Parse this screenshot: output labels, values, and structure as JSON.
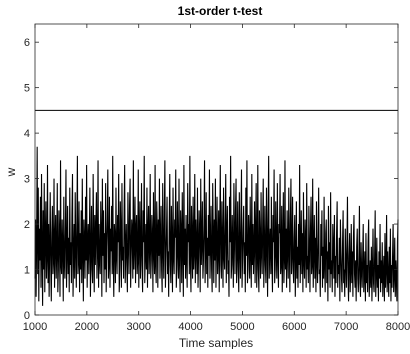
{
  "chart_data": {
    "type": "line",
    "title": "1st-order t-test",
    "xlabel": "Time samples",
    "ylabel": "w",
    "xlim": [
      1000,
      8000
    ],
    "ylim": [
      0,
      6.4
    ],
    "xticks": [
      1000,
      2000,
      3000,
      4000,
      5000,
      6000,
      7000,
      8000
    ],
    "yticks": [
      0,
      1,
      2,
      3,
      4,
      5,
      6
    ],
    "grid": false,
    "legend": "none",
    "colors": {
      "trace": "#000000",
      "threshold": "#000000",
      "axes": "#262626"
    },
    "threshold": {
      "y": 4.5
    },
    "series": [
      {
        "description": "absolute t-statistic per time sample, dense noisy trace mostly between 0 and 3.5",
        "x_start": 1000,
        "x_end": 8000,
        "step": 10,
        "values": [
          0.8,
          2.1,
          0.4,
          1.6,
          3.7,
          0.9,
          2.8,
          0.3,
          1.9,
          1.2,
          2.6,
          0.6,
          3.1,
          1.4,
          0.2,
          2.3,
          1.0,
          2.9,
          0.5,
          1.7,
          2.5,
          0.8,
          1.3,
          3.3,
          0.7,
          2.0,
          0.4,
          1.5,
          2.7,
          1.1,
          0.3,
          1.8,
          2.4,
          0.9,
          1.2,
          3.0,
          0.6,
          1.6,
          2.2,
          0.8,
          1.4,
          2.9,
          0.5,
          1.0,
          2.3,
          1.7,
          0.4,
          3.4,
          1.1,
          0.9,
          2.1,
          1.5,
          0.3,
          2.6,
          1.2,
          0.8,
          1.9,
          3.2,
          0.6,
          1.4,
          2.4,
          0.9,
          1.7,
          0.5,
          2.8,
          1.1,
          1.6,
          0.7,
          2.2,
          3.1,
          0.4,
          1.3,
          2.0,
          0.8,
          2.7,
          1.5,
          0.6,
          1.9,
          3.5,
          0.9,
          1.2,
          2.5,
          0.5,
          1.8,
          1.0,
          2.3,
          0.7,
          3.0,
          1.4,
          0.3,
          2.1,
          1.6,
          0.8,
          2.6,
          1.2,
          3.3,
          0.6,
          1.5,
          2.0,
          0.9,
          1.7,
          2.8,
          0.4,
          1.3,
          2.4,
          1.0,
          0.7,
          3.1,
          1.6,
          0.5,
          2.2,
          1.1,
          1.9,
          2.7,
          0.8,
          1.4,
          3.4,
          0.6,
          2.0,
          1.2,
          0.9,
          2.5,
          1.7,
          0.4,
          3.0,
          1.3,
          2.3,
          0.7,
          1.8,
          1.0,
          2.9,
          0.5,
          1.5,
          2.1,
          3.2,
          0.8,
          1.1,
          2.6,
          0.6,
          1.9,
          1.4,
          2.4,
          0.9,
          3.5,
          1.2,
          0.4,
          2.0,
          1.7,
          0.7,
          2.8,
          1.3,
          0.9,
          2.2,
          1.6,
          3.1,
          0.5,
          1.0,
          2.5,
          1.8,
          0.6,
          2.9,
          1.2,
          1.5,
          0.8,
          2.3,
          3.3,
          0.7,
          1.4,
          2.0,
          1.1,
          0.5,
          2.7,
          1.6,
          0.9,
          2.4,
          3.0,
          0.6,
          1.3,
          2.1,
          1.8,
          0.8,
          3.4,
          1.0,
          1.5,
          2.6,
          0.7,
          1.9,
          2.2,
          0.9,
          1.2,
          3.2,
          0.6,
          1.7,
          2.5,
          0.8,
          1.4,
          2.9,
          1.1,
          0.5,
          2.3,
          1.6,
          3.5,
          0.7,
          1.3,
          2.0,
          1.0,
          2.8,
          0.6,
          1.8,
          2.4,
          0.9,
          1.5,
          3.1,
          0.8,
          1.2,
          2.2,
          1.7,
          0.5,
          2.7,
          1.4,
          0.9,
          3.3,
          1.1,
          0.7,
          2.5,
          1.9,
          0.6,
          2.1,
          1.3,
          3.0,
          0.8,
          1.6,
          2.4,
          1.0,
          0.5,
          2.9,
          1.5,
          0.8,
          2.2,
          3.4,
          0.6,
          1.2,
          1.8,
          2.6,
          0.9,
          1.4,
          0.4,
          2.0,
          3.1,
          1.1,
          0.7,
          2.4,
          1.6,
          0.5,
          2.8,
          1.3,
          0.9,
          2.1,
          1.7,
          3.2,
          0.6,
          1.0,
          2.5,
          1.4,
          0.8,
          3.0,
          1.2,
          0.5,
          2.3,
          1.8,
          0.7,
          2.7,
          1.5,
          0.4,
          3.3,
          1.1,
          1.9,
          0.8,
          2.2,
          1.3,
          0.6,
          2.9,
          1.6,
          2.0,
          0.9,
          3.5,
          1.2,
          0.5,
          2.4,
          1.7,
          0.8,
          2.6,
          1.0,
          1.4,
          3.1,
          0.7,
          2.1,
          1.5,
          0.9,
          2.8,
          0.6,
          1.3,
          2.3,
          1.8,
          0.5,
          3.0,
          1.1,
          1.6,
          2.5,
          0.8,
          1.2,
          2.0,
          3.4,
          0.7,
          1.4,
          2.7,
          0.9,
          1.7,
          0.6,
          2.2,
          1.3,
          3.2,
          0.8,
          1.5,
          2.4,
          1.0,
          0.5,
          2.9,
          1.8,
          0.7,
          2.1,
          1.2,
          3.0,
          0.6,
          1.6,
          2.6,
          0.9,
          1.4,
          2.3,
          0.5,
          1.9,
          3.3,
          1.1,
          0.8,
          2.5,
          1.5,
          0.6,
          2.8,
          1.3,
          1.0,
          2.0,
          3.1,
          0.7,
          1.7,
          2.4,
          0.9,
          1.2,
          0.4,
          2.6,
          1.6,
          3.5,
          0.8,
          1.1,
          2.2,
          1.4,
          0.6,
          2.9,
          1.8,
          0.9,
          2.3,
          3.0,
          0.7,
          1.3,
          2.5,
          1.0,
          0.5,
          2.7,
          1.5,
          0.8,
          2.1,
          3.2,
          0.6,
          1.2,
          1.9,
          2.4,
          0.9,
          1.6,
          0.5,
          2.8,
          1.3,
          3.4,
          0.7,
          1.0,
          2.2,
          1.7,
          0.8,
          2.6,
          1.4,
          0.6,
          3.1,
          1.1,
          2.0,
          0.9,
          1.5,
          2.5,
          0.7,
          1.8,
          2.9,
          0.6,
          1.2,
          3.3,
          1.0,
          0.5,
          2.3,
          1.6,
          0.8,
          2.7,
          1.4,
          0.9,
          2.0,
          3.0,
          0.6,
          1.3,
          2.4,
          1.1,
          0.7,
          2.8,
          1.7,
          0.4,
          2.1,
          3.5,
          0.8,
          1.5,
          1.9,
          0.9,
          2.6,
          1.2,
          0.5,
          2.2,
          1.6,
          3.2,
          0.7,
          1.0,
          2.5,
          1.4,
          0.8,
          2.9,
          1.3,
          0.6,
          2.0,
          1.8,
          3.1,
          0.9,
          1.1,
          2.4,
          0.5,
          1.5,
          2.7,
          0.7,
          1.2,
          3.4,
          1.0,
          1.9,
          0.6,
          2.3,
          1.4,
          0.8,
          2.8,
          1.6,
          0.5,
          2.1,
          3.0,
          0.9,
          1.3,
          2.6,
          1.0,
          0.7,
          1.7,
          2.2,
          0.4,
          1.2,
          2.5,
          0.8,
          1.5,
          0.6,
          2.0,
          1.1,
          3.3,
          0.7,
          1.4,
          2.3,
          0.9,
          1.8,
          0.5,
          2.7,
          1.2,
          0.8,
          2.1,
          1.6,
          0.6,
          2.9,
          1.0,
          1.3,
          0.7,
          2.4,
          1.5,
          0.5,
          1.9,
          2.6,
          0.9,
          1.1,
          3.0,
          0.6,
          1.4,
          2.2,
          0.8,
          1.7,
          0.5,
          2.5,
          1.2,
          0.7,
          1.6,
          2.8,
          0.9,
          1.0,
          0.4,
          2.0,
          1.3,
          2.3,
          0.6,
          1.5,
          0.8,
          2.6,
          1.1,
          0.5,
          1.8,
          2.1,
          0.7,
          1.4,
          0.3,
          2.4,
          1.0,
          1.6,
          0.6,
          2.7,
          0.9,
          1.2,
          0.5,
          2.0,
          1.5,
          0.8,
          2.2,
          0.4,
          1.3,
          0.7,
          1.8,
          2.5,
          0.6,
          1.1,
          0.9,
          1.7,
          0.3,
          2.1,
          1.4,
          0.8,
          0.5,
          1.6,
          2.3,
          0.7,
          1.0,
          0.4,
          1.9,
          1.2,
          0.6,
          1.5,
          2.6,
          0.8,
          0.3,
          1.3,
          1.8,
          0.5,
          1.0,
          2.0,
          0.7,
          1.4,
          0.4,
          1.7,
          2.2,
          0.9,
          0.6,
          1.2,
          0.3,
          1.5,
          1.9,
          0.8,
          0.5,
          1.1,
          2.4,
          0.7,
          0.4,
          1.6,
          1.0,
          0.6,
          1.3,
          2.0,
          0.5,
          0.9,
          1.4,
          0.3,
          1.8,
          0.7,
          1.1,
          0.5,
          1.6,
          2.1,
          0.4,
          0.8,
          1.2,
          0.6,
          1.5,
          0.3,
          1.0,
          1.9,
          0.7,
          0.5,
          1.3,
          2.3,
          0.4,
          0.9,
          1.7,
          0.6,
          1.1,
          0.3,
          1.4,
          0.8,
          2.0,
          0.5,
          1.2,
          0.7,
          1.6,
          0.4,
          0.9,
          1.3,
          0.3,
          1.8,
          0.6,
          1.0,
          2.2,
          0.5,
          1.4,
          0.8,
          0.4,
          1.5,
          0.7,
          1.9,
          0.3,
          1.1,
          0.6,
          1.3,
          2.0,
          0.5,
          0.9,
          1.7,
          0.4,
          1.2,
          0.8,
          0.3,
          1.6,
          2.1
        ]
      }
    ]
  }
}
